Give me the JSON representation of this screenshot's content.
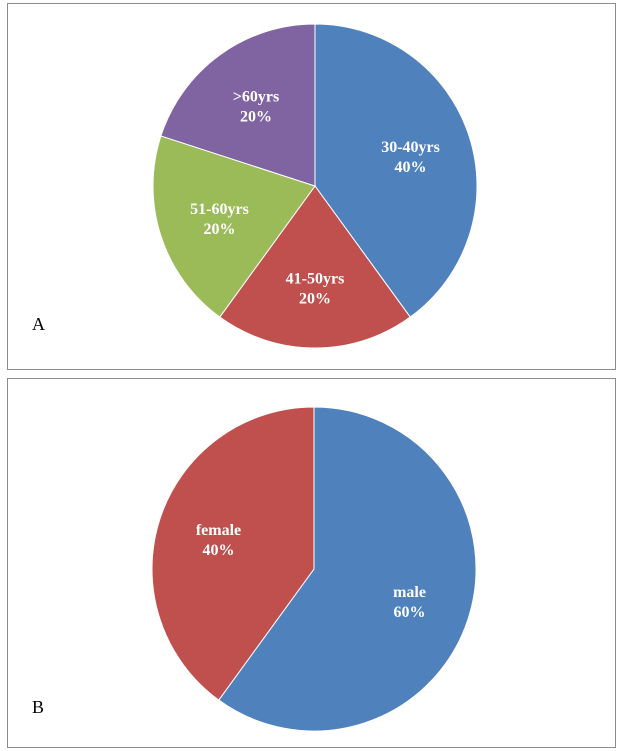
{
  "chart_data": [
    {
      "type": "pie",
      "panel_label": "A",
      "start_angle_deg": 0,
      "direction": "clockwise",
      "slices": [
        {
          "name": "30-40yrs",
          "value": 40,
          "label": "40%",
          "color": "#4F81BD"
        },
        {
          "name": "41-50yrs",
          "value": 20,
          "label": "20%",
          "color": "#C0504D"
        },
        {
          "name": "51-60yrs",
          "value": 20,
          "label": "20%",
          "color": "#9BBB59"
        },
        {
          "name": ">60yrs",
          "value": 20,
          "label": "20%",
          "color": "#8064A2"
        }
      ]
    },
    {
      "type": "pie",
      "panel_label": "B",
      "start_angle_deg": 0,
      "direction": "clockwise",
      "slices": [
        {
          "name": "male",
          "value": 60,
          "label": "60%",
          "color": "#4F81BD"
        },
        {
          "name": "female",
          "value": 40,
          "label": "40%",
          "color": "#C0504D"
        }
      ]
    }
  ]
}
